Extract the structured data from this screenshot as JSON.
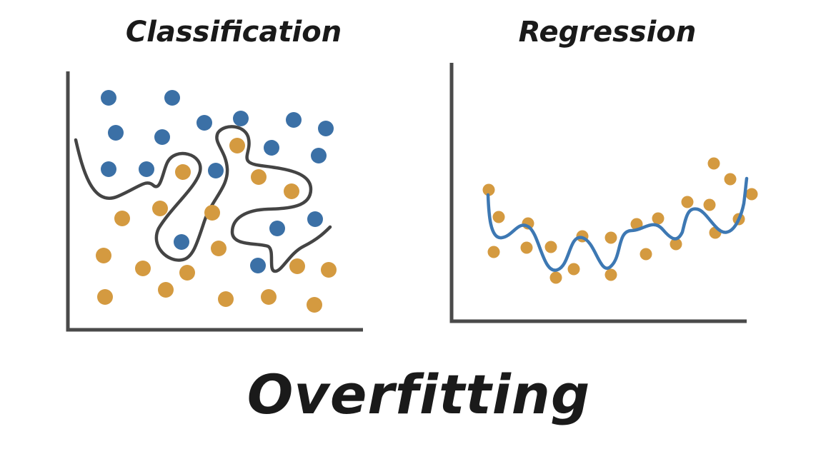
{
  "titles": {
    "left": "Classification",
    "right": "Regression",
    "caption": "Overfitting"
  },
  "colors": {
    "blue": "#3b70a6",
    "orange": "#d49a40",
    "axis": "#4a4a4a",
    "boundary": "#444444",
    "fit_line": "#3d78b3"
  },
  "classification": {
    "blue_points": [
      [
        152,
        137
      ],
      [
        241,
        137
      ],
      [
        162,
        186
      ],
      [
        227,
        192
      ],
      [
        286,
        172
      ],
      [
        337,
        166
      ],
      [
        411,
        168
      ],
      [
        456,
        180
      ],
      [
        152,
        237
      ],
      [
        205,
        237
      ],
      [
        302,
        239
      ],
      [
        380,
        207
      ],
      [
        446,
        218
      ],
      [
        388,
        320
      ],
      [
        441,
        307
      ],
      [
        254,
        339
      ],
      [
        361,
        372
      ]
    ],
    "orange_points": [
      [
        332,
        204
      ],
      [
        256,
        241
      ],
      [
        362,
        248
      ],
      [
        408,
        268
      ],
      [
        171,
        306
      ],
      [
        224,
        292
      ],
      [
        297,
        298
      ],
      [
        306,
        348
      ],
      [
        145,
        358
      ],
      [
        200,
        376
      ],
      [
        262,
        382
      ],
      [
        416,
        373
      ],
      [
        460,
        378
      ],
      [
        147,
        416
      ],
      [
        232,
        406
      ],
      [
        316,
        419
      ],
      [
        376,
        416
      ],
      [
        440,
        427
      ]
    ]
  },
  "regression": {
    "points": [
      [
        684,
        266
      ],
      [
        698,
        304
      ],
      [
        739,
        313
      ],
      [
        691,
        353
      ],
      [
        737,
        347
      ],
      [
        771,
        346
      ],
      [
        778,
        389
      ],
      [
        803,
        377
      ],
      [
        815,
        331
      ],
      [
        855,
        333
      ],
      [
        855,
        385
      ],
      [
        891,
        314
      ],
      [
        904,
        356
      ],
      [
        921,
        306
      ],
      [
        946,
        342
      ],
      [
        962,
        283
      ],
      [
        993,
        287
      ],
      [
        999,
        229
      ],
      [
        1022,
        251
      ],
      [
        1001,
        326
      ],
      [
        1034,
        307
      ],
      [
        1052,
        272
      ]
    ]
  }
}
